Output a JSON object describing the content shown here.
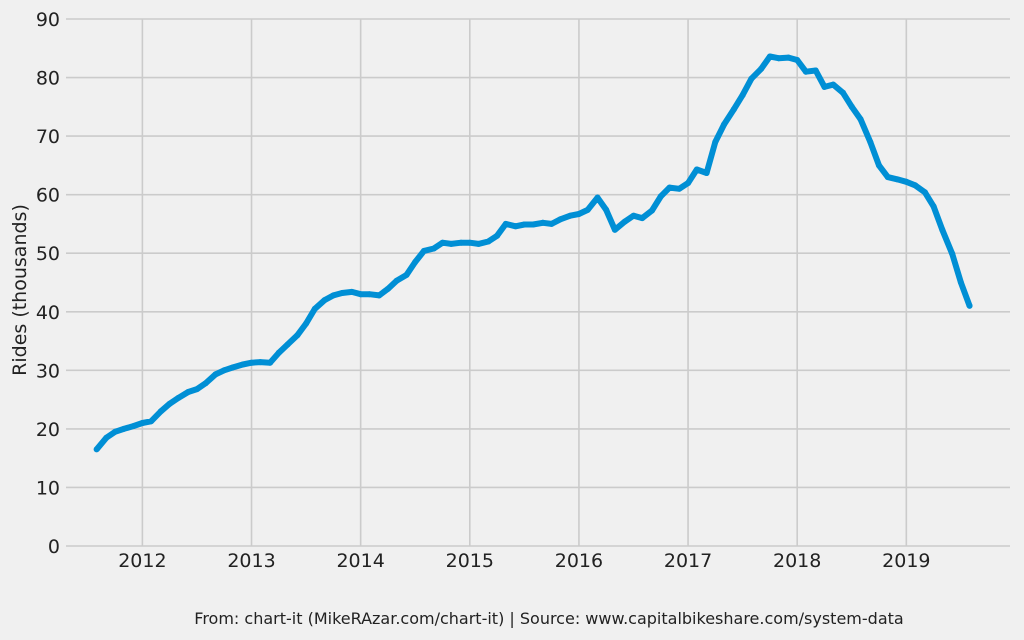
{
  "chart_data": {
    "type": "line",
    "title": "",
    "xlabel": "",
    "ylabel": "Rides (thousands)",
    "footer": "From: chart-it (MikeRAzar.com/chart-it) | Source: www.capitalbikeshare.com/system-data",
    "xlim": [
      2011.3,
      2019.95
    ],
    "ylim": [
      0,
      90
    ],
    "x_ticks": [
      2012,
      2013,
      2014,
      2015,
      2016,
      2017,
      2018,
      2019
    ],
    "y_ticks": [
      0,
      10,
      20,
      30,
      40,
      50,
      60,
      70,
      80,
      90
    ],
    "grid": true,
    "legend": "none",
    "colors": {
      "background": "#f0f0f0",
      "grid": "#cbcbcb",
      "series": "#008fd5",
      "text": "#222222"
    },
    "series": [
      {
        "color": "#008fd5",
        "points": [
          [
            2011.58,
            16.5
          ],
          [
            2011.67,
            18.5
          ],
          [
            2011.75,
            19.5
          ],
          [
            2011.83,
            20.0
          ],
          [
            2011.92,
            20.5
          ],
          [
            2012.0,
            21.0
          ],
          [
            2012.08,
            21.3
          ],
          [
            2012.17,
            23.0
          ],
          [
            2012.25,
            24.3
          ],
          [
            2012.33,
            25.3
          ],
          [
            2012.42,
            26.3
          ],
          [
            2012.5,
            26.8
          ],
          [
            2012.58,
            27.8
          ],
          [
            2012.67,
            29.3
          ],
          [
            2012.75,
            30.0
          ],
          [
            2012.83,
            30.5
          ],
          [
            2012.92,
            31.0
          ],
          [
            2013.0,
            31.3
          ],
          [
            2013.08,
            31.4
          ],
          [
            2013.17,
            31.3
          ],
          [
            2013.25,
            33.0
          ],
          [
            2013.33,
            34.4
          ],
          [
            2013.42,
            36.0
          ],
          [
            2013.5,
            38.0
          ],
          [
            2013.58,
            40.5
          ],
          [
            2013.67,
            42.0
          ],
          [
            2013.75,
            42.8
          ],
          [
            2013.83,
            43.2
          ],
          [
            2013.92,
            43.4
          ],
          [
            2014.0,
            43.0
          ],
          [
            2014.08,
            43.0
          ],
          [
            2014.17,
            42.8
          ],
          [
            2014.25,
            43.9
          ],
          [
            2014.33,
            45.3
          ],
          [
            2014.42,
            46.3
          ],
          [
            2014.5,
            48.5
          ],
          [
            2014.58,
            50.4
          ],
          [
            2014.67,
            50.8
          ],
          [
            2014.75,
            51.8
          ],
          [
            2014.83,
            51.6
          ],
          [
            2014.92,
            51.8
          ],
          [
            2015.0,
            51.8
          ],
          [
            2015.08,
            51.6
          ],
          [
            2015.17,
            52.0
          ],
          [
            2015.25,
            53.0
          ],
          [
            2015.33,
            55.0
          ],
          [
            2015.42,
            54.6
          ],
          [
            2015.5,
            54.9
          ],
          [
            2015.58,
            54.9
          ],
          [
            2015.67,
            55.2
          ],
          [
            2015.75,
            55.0
          ],
          [
            2015.83,
            55.8
          ],
          [
            2015.92,
            56.4
          ],
          [
            2016.0,
            56.7
          ],
          [
            2016.08,
            57.4
          ],
          [
            2016.17,
            59.5
          ],
          [
            2016.25,
            57.4
          ],
          [
            2016.33,
            54.0
          ],
          [
            2016.42,
            55.4
          ],
          [
            2016.5,
            56.4
          ],
          [
            2016.58,
            56.0
          ],
          [
            2016.67,
            57.3
          ],
          [
            2016.75,
            59.7
          ],
          [
            2016.83,
            61.2
          ],
          [
            2016.92,
            61.0
          ],
          [
            2017.0,
            62.0
          ],
          [
            2017.08,
            64.3
          ],
          [
            2017.17,
            63.7
          ],
          [
            2017.25,
            69.0
          ],
          [
            2017.33,
            72.0
          ],
          [
            2017.42,
            74.6
          ],
          [
            2017.5,
            77.0
          ],
          [
            2017.58,
            79.8
          ],
          [
            2017.67,
            81.5
          ],
          [
            2017.75,
            83.6
          ],
          [
            2017.83,
            83.3
          ],
          [
            2017.92,
            83.4
          ],
          [
            2018.0,
            83.0
          ],
          [
            2018.08,
            81.0
          ],
          [
            2018.17,
            81.2
          ],
          [
            2018.25,
            78.4
          ],
          [
            2018.33,
            78.8
          ],
          [
            2018.42,
            77.4
          ],
          [
            2018.5,
            75.0
          ],
          [
            2018.58,
            72.9
          ],
          [
            2018.67,
            69.0
          ],
          [
            2018.75,
            65.0
          ],
          [
            2018.83,
            63.0
          ],
          [
            2018.92,
            62.6
          ],
          [
            2019.0,
            62.2
          ],
          [
            2019.08,
            61.6
          ],
          [
            2019.17,
            60.4
          ],
          [
            2019.25,
            58.0
          ],
          [
            2019.33,
            54.0
          ],
          [
            2019.42,
            49.9
          ],
          [
            2019.5,
            45.0
          ],
          [
            2019.58,
            41.0
          ]
        ]
      }
    ]
  }
}
